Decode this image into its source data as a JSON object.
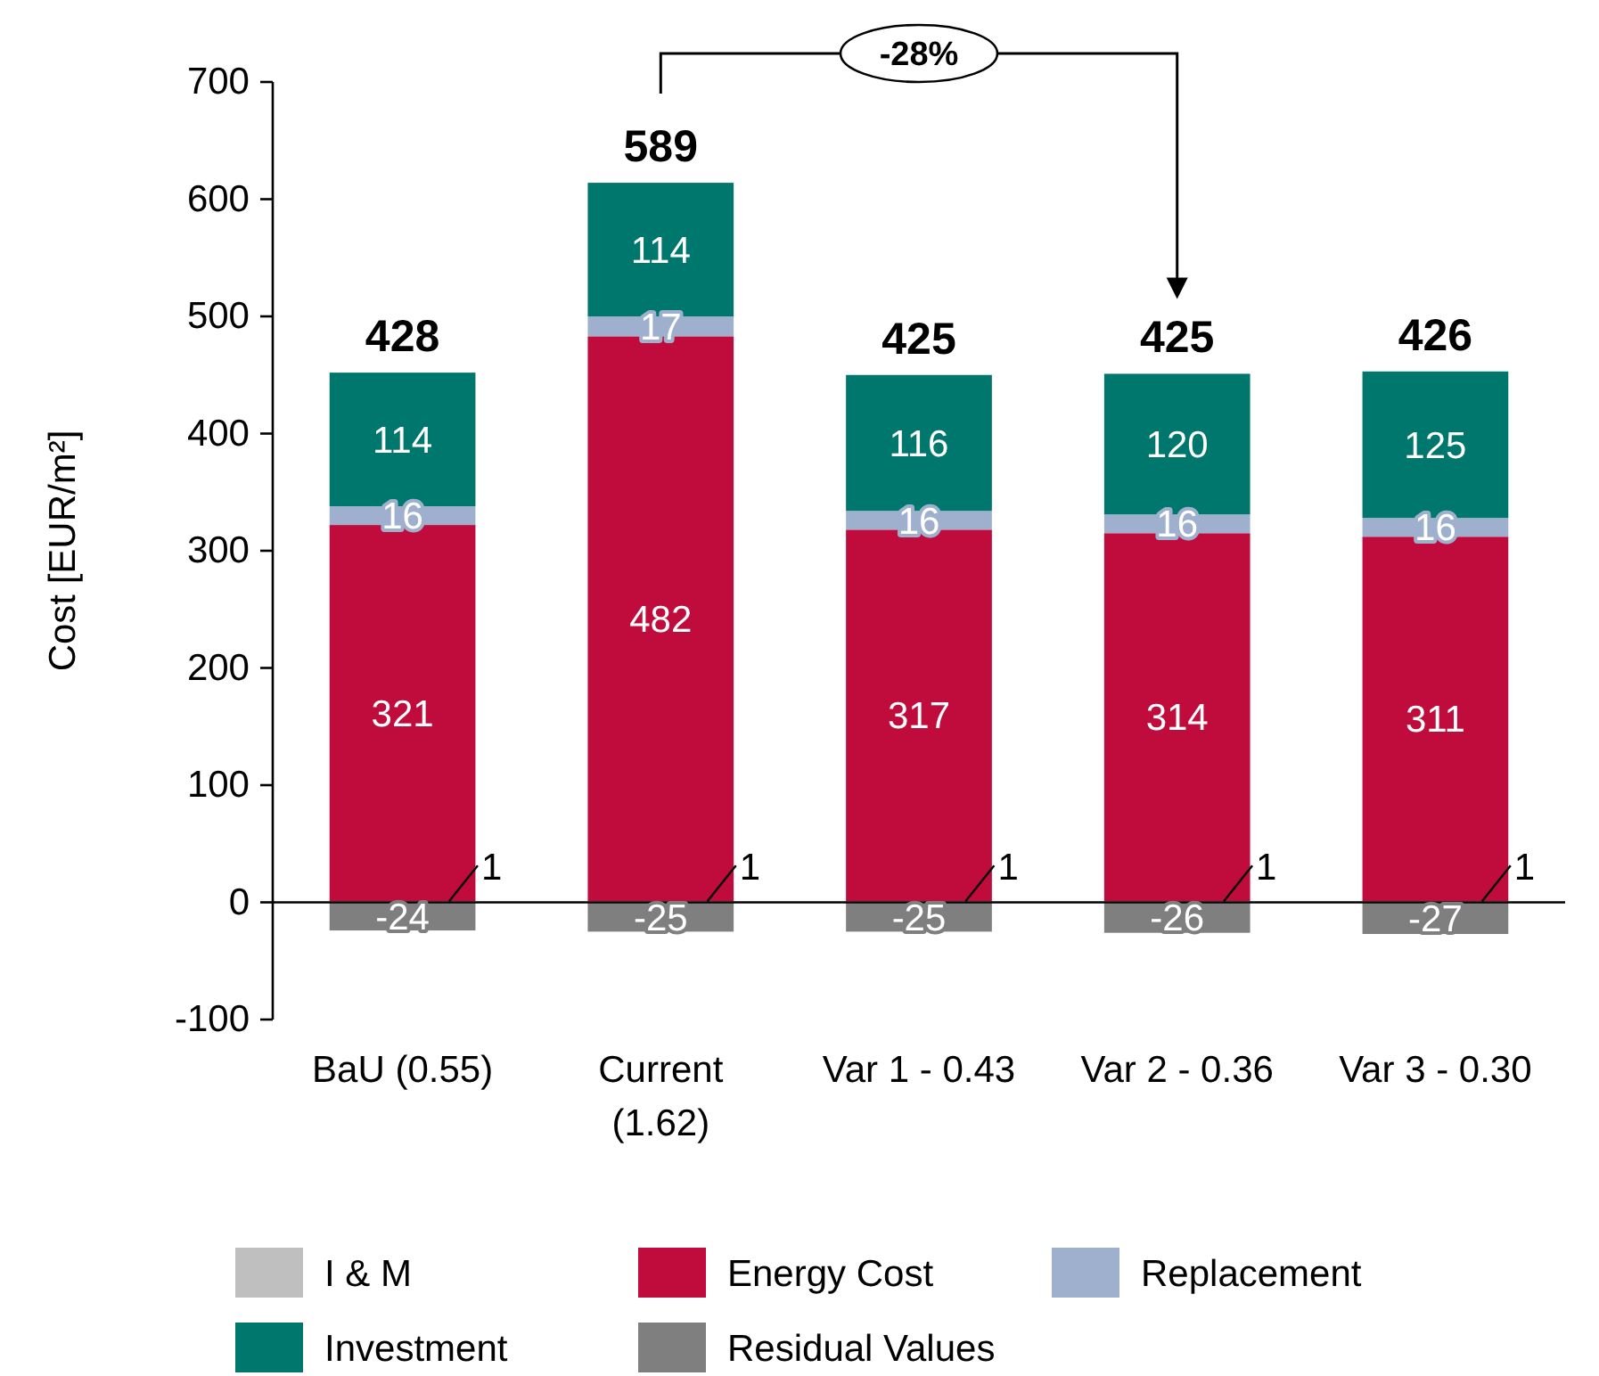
{
  "chart_data": {
    "type": "bar",
    "stacked": true,
    "ylabel": "Cost [EUR/m²]",
    "categories": [
      "BaU (0.55)",
      "Current (1.62)",
      "Var 1 - 0.43",
      "Var 2 - 0.36",
      "Var 3 - 0.30"
    ],
    "series": [
      {
        "name": "I & M",
        "color": "#bfbfbf",
        "values": [
          1,
          1,
          1,
          1,
          1
        ]
      },
      {
        "name": "Energy Cost",
        "color": "#c00c3c",
        "values": [
          321,
          482,
          317,
          314,
          311
        ]
      },
      {
        "name": "Replacement",
        "color": "#9fb0cf",
        "values": [
          16,
          17,
          16,
          16,
          16
        ]
      },
      {
        "name": "Investment",
        "color": "#00776c",
        "values": [
          114,
          114,
          116,
          120,
          125
        ]
      },
      {
        "name": "Residual Values",
        "color": "#7f7f7f",
        "values": [
          -24,
          -25,
          -25,
          -26,
          -27
        ]
      }
    ],
    "ylim": [
      -100,
      700
    ],
    "yticks": [
      -100,
      0,
      100,
      200,
      300,
      400,
      500,
      600,
      700
    ],
    "data_labels": true,
    "totals": [
      "428",
      "589",
      "425",
      "425",
      "426"
    ],
    "annotations": [
      "-28%"
    ],
    "legend": "bottom"
  }
}
